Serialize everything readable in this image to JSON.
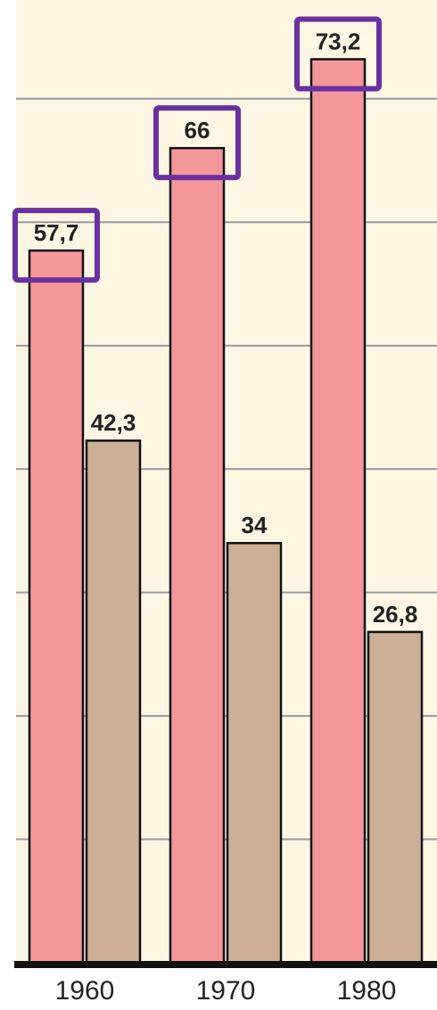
{
  "chart_data": {
    "type": "bar",
    "categories": [
      "1960",
      "1970",
      "1980"
    ],
    "series": [
      {
        "color": "#f4979a",
        "values": [
          57.7,
          66,
          73.2
        ],
        "value_labels": [
          "57,7",
          "66",
          "73,2"
        ]
      },
      {
        "color": "#cdae97",
        "values": [
          42.3,
          34,
          26.8
        ],
        "value_labels": [
          "42,3",
          "34",
          "26,8"
        ]
      }
    ],
    "ylim": [
      0,
      78
    ],
    "yticks": [
      0,
      10,
      20,
      30,
      40,
      50,
      60,
      70
    ],
    "grid": true
  }
}
